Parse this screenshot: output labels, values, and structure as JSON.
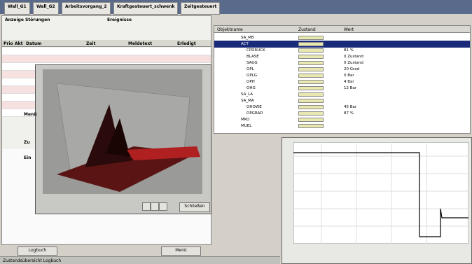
{
  "tabs": [
    "Wall_G1",
    "Wall_G2",
    "Arbeitsvorgang_2",
    "Kraftgesteuert_schwenk",
    "Zeitgesteuert"
  ],
  "left_panel": {
    "group1": "Anzeige Störungen",
    "group2": "Ereignisse",
    "columns": [
      "Prio",
      "Akt",
      "Datum",
      "Zeit",
      "Meldetext",
      "Erledigt"
    ]
  },
  "plot_window": {
    "close_button": "Schließen",
    "side_labels": [
      "Menü",
      "Zu",
      "Ein"
    ]
  },
  "tree": {
    "columns": [
      "Objektname",
      "Zustand",
      "Wert"
    ],
    "items": [
      {
        "label": "SA_MB"
      },
      {
        "label": "ACT"
      },
      {
        "label": "CPDRUCK",
        "value": "81 %"
      },
      {
        "label": "BLASE",
        "value": "0 Zustand"
      },
      {
        "label": "SAUG",
        "value": "0 Zustand"
      },
      {
        "label": "OPL",
        "value": "20 Grad"
      },
      {
        "label": "OPLG",
        "value": "0 Bar"
      },
      {
        "label": "OPH",
        "value": "4 Bar"
      },
      {
        "label": "OHG",
        "value": "12 Bar"
      },
      {
        "label": "SA_LA"
      },
      {
        "label": "SA_MA"
      },
      {
        "label": "OHOWE",
        "value": "45 Bar"
      },
      {
        "label": "OPGRAD",
        "value": "87 %"
      },
      {
        "label": "MKO"
      },
      {
        "label": "MUEL"
      }
    ]
  },
  "bottom_buttons": [
    "Logbuch",
    "Menü"
  ],
  "status_bar": "Zustandsübersicht Logbuch"
}
